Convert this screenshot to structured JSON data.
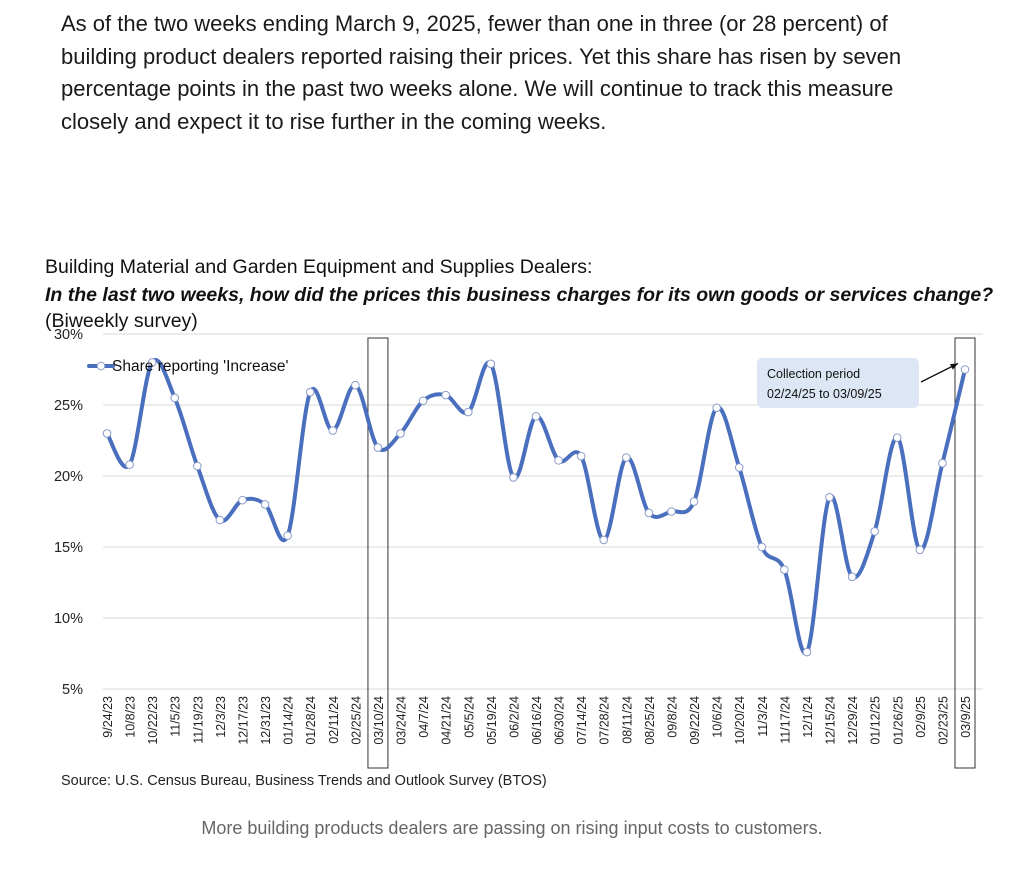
{
  "intro_text": "As of the two weeks ending March 9, 2025, fewer than one in three (or 28 percent) of building product dealers reported raising their prices. Yet this share has risen by seven percentage points in the past two weeks alone. We will continue to track this measure closely and expect it to rise further in the coming weeks.",
  "caption": "More building products dealers are passing on rising input costs to customers.",
  "chart_data": {
    "type": "line",
    "title_line1": "Building Material and Garden Equipment and Supplies Dealers:",
    "title_question": "In the last two weeks, how did the prices this business charges for its own goods or services change?",
    "title_suffix": " (Biweekly survey)",
    "source": "Source: U.S. Census Bureau, Business Trends and Outlook Survey (BTOS)",
    "legend": "Share reporting 'Increase'",
    "legend_position": "top-left",
    "ylim": [
      5,
      30
    ],
    "yticks": [
      "5%",
      "10%",
      "15%",
      "20%",
      "25%",
      "30%"
    ],
    "ytick_values": [
      5,
      10,
      15,
      20,
      25,
      30
    ],
    "grid": true,
    "line_color": "#4a6fbe",
    "x": [
      "9/24/23",
      "10/8/23",
      "10/22/23",
      "11/5/23",
      "11/19/23",
      "12/3/23",
      "12/17/23",
      "12/31/23",
      "01/14/24",
      "01/28/24",
      "02/11/24",
      "02/25/24",
      "03/10/24",
      "03/24/24",
      "04/7/24",
      "04/21/24",
      "05/5/24",
      "05/19/24",
      "06/2/24",
      "06/16/24",
      "06/30/24",
      "07/14/24",
      "07/28/24",
      "08/11/24",
      "08/25/24",
      "09/8/24",
      "09/22/24",
      "10/6/24",
      "10/20/24",
      "11/3/24",
      "11/17/24",
      "12/1/24",
      "12/15/24",
      "12/29/24",
      "01/12/25",
      "01/26/25",
      "02/9/25",
      "02/23/25",
      "03/9/25"
    ],
    "series": [
      {
        "name": "Share reporting 'Increase'",
        "values": [
          23.0,
          20.8,
          28.0,
          25.5,
          20.7,
          16.9,
          18.3,
          18.0,
          15.8,
          25.9,
          23.2,
          26.4,
          22.0,
          23.0,
          25.3,
          25.7,
          24.5,
          27.9,
          19.9,
          24.2,
          21.1,
          21.4,
          15.5,
          21.3,
          17.4,
          17.5,
          18.2,
          24.8,
          20.6,
          15.0,
          13.4,
          7.6,
          18.5,
          12.9,
          16.1,
          22.7,
          14.8,
          20.9,
          27.5
        ]
      }
    ],
    "highlight_indices": [
      12,
      38
    ],
    "annotation": {
      "line1": "Collection period",
      "line2": "02/24/25 to 03/09/25",
      "target_index": 38
    }
  }
}
